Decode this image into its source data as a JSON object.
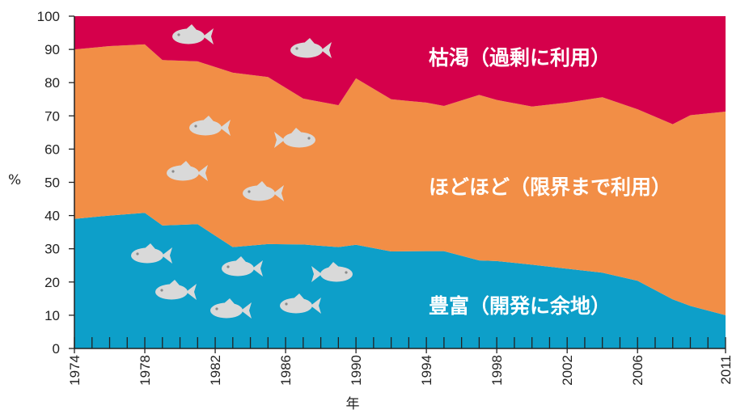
{
  "chart_data": {
    "type": "area",
    "stacked": true,
    "x": [
      1974,
      1976,
      1978,
      1979,
      1981,
      1983,
      1985,
      1987,
      1989,
      1990,
      1992,
      1994,
      1995,
      1997,
      1998,
      2000,
      2002,
      2004,
      2006,
      2008,
      2009,
      2011
    ],
    "series": [
      {
        "name": "豊富（開発に余地）",
        "color": "#0d9fc9",
        "values": [
          39,
          40,
          40.8,
          37,
          37.4,
          30.5,
          31.4,
          31.3,
          30.5,
          31.2,
          29.2,
          29.3,
          29.3,
          26.5,
          26.3,
          25.2,
          24,
          22.8,
          20.4,
          14.8,
          12.8,
          10
        ]
      },
      {
        "name": "ほどほど（限界まで利用）",
        "color": "#f28e46",
        "values": [
          51,
          51,
          50.7,
          49.8,
          49,
          52.5,
          50.3,
          43.9,
          42.7,
          50.1,
          45.8,
          44.7,
          43.7,
          49.8,
          48.5,
          47.6,
          50,
          52.8,
          51.6,
          52.7,
          57.4,
          61.3
        ]
      },
      {
        "name": "枯渇（過剰に利用）",
        "color": "#d5004b",
        "values": [
          10,
          9,
          8.5,
          13.2,
          13.6,
          17,
          18.3,
          24.8,
          26.8,
          18.7,
          25,
          26,
          27,
          23.7,
          25.2,
          27.2,
          26,
          24.4,
          28,
          32.5,
          29.8,
          28.7
        ]
      }
    ],
    "ylabel": "%",
    "xlabel": "年",
    "ylim": [
      0,
      100
    ],
    "xlim": [
      1974,
      2011
    ],
    "yticks": [
      "0",
      "10",
      "20",
      "30",
      "40",
      "50",
      "60",
      "70",
      "80",
      "90",
      "100"
    ],
    "xticks": [
      "1974",
      "1978",
      "1982",
      "1986",
      "1990",
      "1994",
      "1998",
      "2002",
      "2006",
      "2011"
    ],
    "xtick_values": [
      1974,
      1978,
      1982,
      1986,
      1990,
      1994,
      1998,
      2002,
      2006,
      2011
    ],
    "ytick_values": [
      0,
      10,
      20,
      30,
      40,
      50,
      60,
      70,
      80,
      90,
      100
    ],
    "grid": false,
    "legend": "inline labels"
  },
  "labels": {
    "depleted": "枯渇（過剰に利用）",
    "moderate": "ほどほど（限界まで利用）",
    "abundant": "豊富（開発に余地）"
  },
  "fish_color": "#d9d9d9",
  "fish_icon": "fish-icon"
}
